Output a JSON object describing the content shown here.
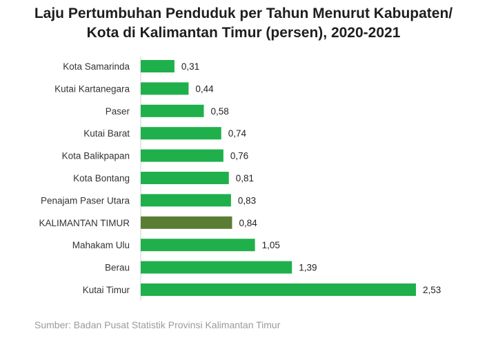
{
  "title_line1": "Laju Pertumbuhan Penduduk per Tahun Menurut Kabupaten/",
  "title_line2": "Kota di Kalimantan Timur (persen), 2020-2021",
  "source": "Sumber: Badan Pusat Statistik Provinsi Kalimantan Timur",
  "colors": {
    "bar": "#1fb04b",
    "highlight": "#5a7d34",
    "axis": "#d0d0d0"
  },
  "chart_data": {
    "type": "bar",
    "orientation": "horizontal",
    "title": "Laju Pertumbuhan Penduduk per Tahun Menurut Kabupaten/Kota di Kalimantan Timur (persen), 2020-2021",
    "categories": [
      "Kota Samarinda",
      "Kutai Kartanegara",
      "Paser",
      "Kutai Barat",
      "Kota Balikpapan",
      "Kota Bontang",
      "Penajam Paser Utara",
      "KALIMANTAN TIMUR",
      "Mahakam Ulu",
      "Berau",
      "Kutai Timur"
    ],
    "values": [
      0.31,
      0.44,
      0.58,
      0.74,
      0.76,
      0.81,
      0.83,
      0.84,
      1.05,
      1.39,
      2.53
    ],
    "value_labels": [
      "0,31",
      "0,44",
      "0,58",
      "0,74",
      "0,76",
      "0,81",
      "0,83",
      "0,84",
      "1,05",
      "1,39",
      "2,53"
    ],
    "highlight": "KALIMANTAN TIMUR",
    "xlim": [
      0,
      2.53
    ],
    "grid": false,
    "legend": "none"
  }
}
